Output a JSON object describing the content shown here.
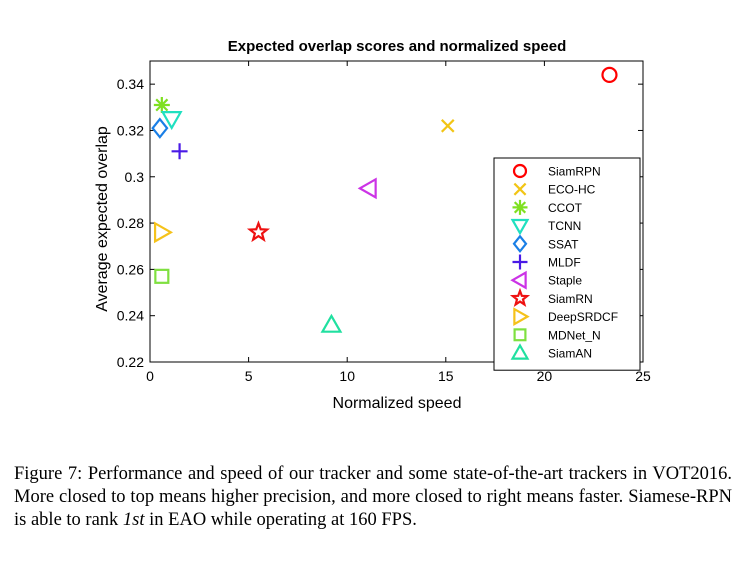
{
  "chart_data": {
    "type": "scatter",
    "title": "Expected overlap scores and normalized speed",
    "xlabel": "Normalized speed",
    "ylabel": "Average expected overlap",
    "xlim": [
      0,
      25
    ],
    "ylim": [
      0.22,
      0.35
    ],
    "xticks": [
      0,
      5,
      10,
      15,
      20,
      25
    ],
    "yticks": [
      0.22,
      0.24,
      0.26,
      0.28,
      0.3,
      0.32,
      0.34
    ],
    "ytick_labels": [
      "0.22",
      "0.24",
      "0.26",
      "0.28",
      "0.3",
      "0.32",
      "0.34"
    ],
    "grid": false,
    "legend_position": "lower-right",
    "series": [
      {
        "name": "SiamRPN",
        "x": 23.3,
        "y": 0.344,
        "marker": "circle",
        "color": "#ff0000"
      },
      {
        "name": "ECO-HC",
        "x": 15.1,
        "y": 0.322,
        "marker": "x",
        "color": "#f2c515"
      },
      {
        "name": "CCOT",
        "x": 0.6,
        "y": 0.331,
        "marker": "asterisk",
        "color": "#7fe020"
      },
      {
        "name": "TCNN",
        "x": 1.1,
        "y": 0.325,
        "marker": "triangle-down",
        "color": "#20e0c0"
      },
      {
        "name": "SSAT",
        "x": 0.5,
        "y": 0.321,
        "marker": "diamond",
        "color": "#1a7fe6"
      },
      {
        "name": "MLDF",
        "x": 1.5,
        "y": 0.311,
        "marker": "plus",
        "color": "#4a1ae6"
      },
      {
        "name": "Staple",
        "x": 11.1,
        "y": 0.295,
        "marker": "triangle-left",
        "color": "#cc33e6"
      },
      {
        "name": "SiamRN",
        "x": 5.5,
        "y": 0.276,
        "marker": "star",
        "color": "#ee1111"
      },
      {
        "name": "DeepSRDCF",
        "x": 0.6,
        "y": 0.276,
        "marker": "triangle-right",
        "color": "#f5c21a"
      },
      {
        "name": "MDNet_N",
        "x": 0.6,
        "y": 0.257,
        "marker": "square",
        "color": "#7fe040"
      },
      {
        "name": "SiamAN",
        "x": 9.2,
        "y": 0.236,
        "marker": "triangle-up",
        "color": "#20e0a0"
      }
    ]
  },
  "caption": {
    "prefix": "Figure 7: Performance and speed of our tracker and some state-of-the-art trackers in VOT2016. More closed to top means higher precision, and more closed to right means faster. Siamese-RPN is able to rank ",
    "rank": "1st",
    "suffix": " in EAO while operating at 160 FPS."
  }
}
